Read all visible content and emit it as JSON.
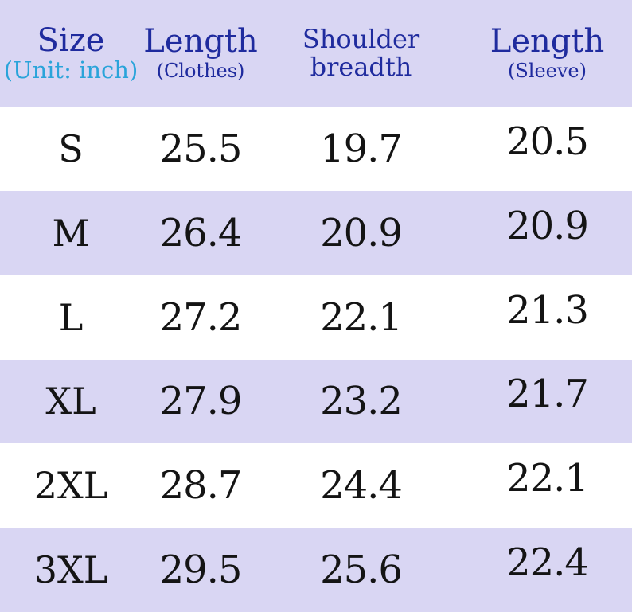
{
  "size_chart": {
    "columns": [
      {
        "title": "Size",
        "subtitle": "(Unit: inch)"
      },
      {
        "title": "Length",
        "subtitle": "(Clothes)"
      },
      {
        "title": "Shoulder breadth",
        "subtitle": ""
      },
      {
        "title": "Length",
        "subtitle": "(Sleeve)"
      }
    ],
    "rows": [
      {
        "size": "S",
        "length_clothes": "25.5",
        "shoulder_breadth": "19.7",
        "length_sleeve": "20.5"
      },
      {
        "size": "M",
        "length_clothes": "26.4",
        "shoulder_breadth": "20.9",
        "length_sleeve": "20.9"
      },
      {
        "size": "L",
        "length_clothes": "27.2",
        "shoulder_breadth": "22.1",
        "length_sleeve": "21.3"
      },
      {
        "size": "XL",
        "length_clothes": "27.9",
        "shoulder_breadth": "23.2",
        "length_sleeve": "21.7"
      },
      {
        "size": "2XL",
        "length_clothes": "28.7",
        "shoulder_breadth": "24.4",
        "length_sleeve": "22.1"
      },
      {
        "size": "3XL",
        "length_clothes": "29.5",
        "shoulder_breadth": "25.6",
        "length_sleeve": "22.4"
      }
    ],
    "colors": {
      "band": "#d9d6f3",
      "row_alt": "#ffffff",
      "header_text": "#1f2b9e",
      "unit_text": "#2aa4da",
      "data_text": "#141414"
    }
  },
  "chart_data": {
    "type": "table",
    "title": "Size (Unit: inch)",
    "columns": [
      "Size",
      "Length (Clothes)",
      "Shoulder breadth",
      "Length (Sleeve)"
    ],
    "rows": [
      [
        "S",
        25.5,
        19.7,
        20.5
      ],
      [
        "M",
        26.4,
        20.9,
        20.9
      ],
      [
        "L",
        27.2,
        22.1,
        21.3
      ],
      [
        "XL",
        27.9,
        23.2,
        21.7
      ],
      [
        "2XL",
        28.7,
        24.4,
        22.1
      ],
      [
        "3XL",
        29.5,
        25.6,
        22.4
      ]
    ]
  }
}
